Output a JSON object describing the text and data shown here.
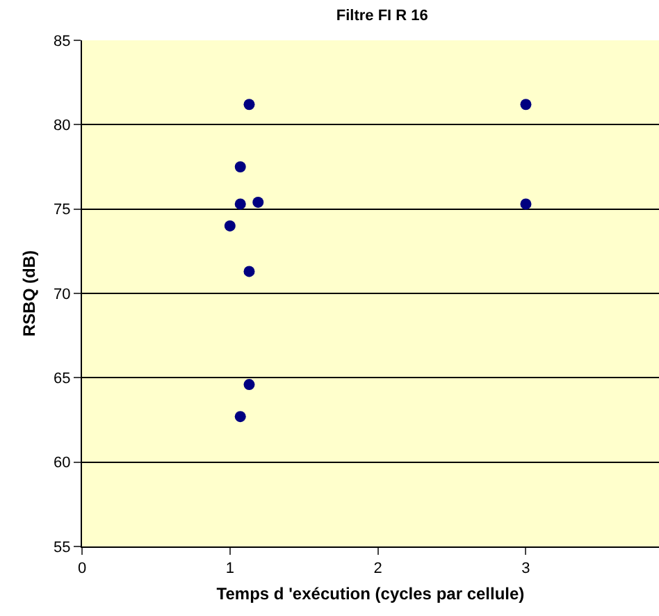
{
  "chart_data": {
    "type": "scatter",
    "title": "Filtre FI R 16",
    "xlabel": "Temps d 'exécution (cycles par cellule)",
    "ylabel": "RSBQ (dB)",
    "x": [
      1.13,
      1.07,
      1.07,
      1.19,
      1.0,
      1.13,
      1.13,
      1.07,
      3.0,
      3.0
    ],
    "values": [
      81.2,
      77.5,
      75.3,
      75.4,
      74.0,
      71.3,
      64.6,
      62.7,
      81.2,
      75.3
    ],
    "color": "#000080",
    "marker": "circle",
    "xlim": [
      0,
      3.9
    ],
    "xticks": [
      0,
      1,
      2,
      3
    ],
    "ylim": [
      55,
      85
    ],
    "yticks": [
      55,
      60,
      65,
      70,
      75,
      80,
      85
    ],
    "grid": "y"
  }
}
